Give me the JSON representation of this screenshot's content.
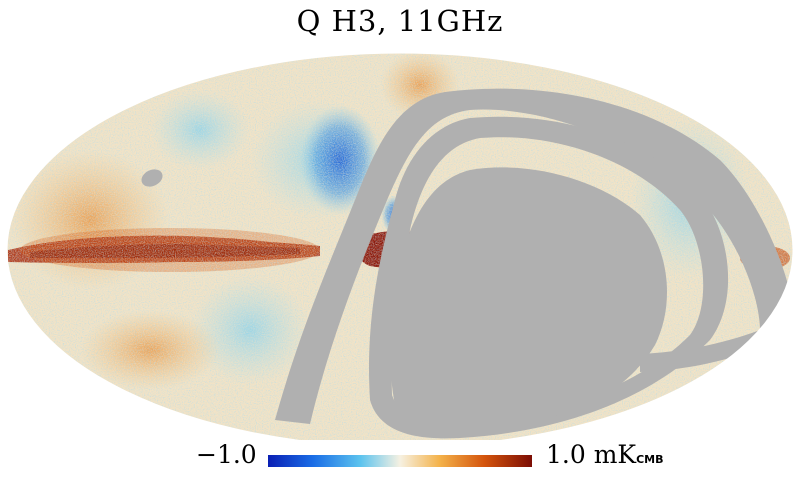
{
  "title": "Q H3, 11GHz",
  "colorbar": {
    "min_label": "−1.0",
    "max_label": "1.0",
    "unit_main": "mK",
    "unit_sub": "CMB",
    "stops": [
      "#0a1fb4",
      "#1a6de6",
      "#5cc3ee",
      "#f6f1e2",
      "#f4b24a",
      "#d4540c",
      "#7c0d05"
    ]
  },
  "map_colors": {
    "mask": "#b0b0b0",
    "cold": "#1b67d6",
    "warm": "#f1b866",
    "hot": "#b52a06",
    "neutral": "#f1ead9"
  }
}
